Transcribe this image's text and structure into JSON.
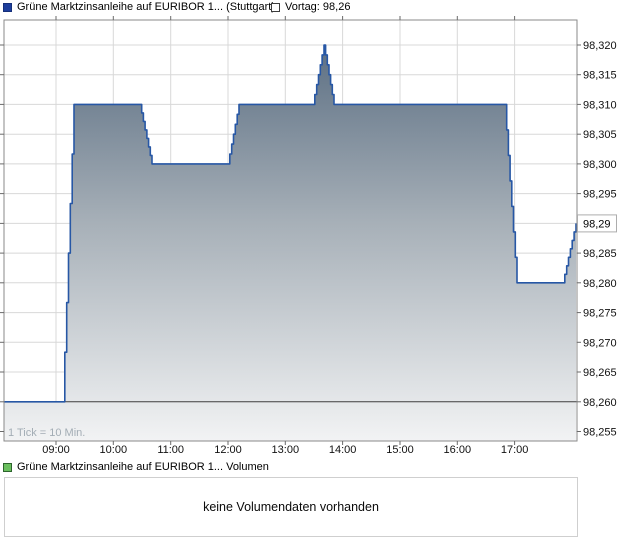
{
  "price_chart": {
    "legend": {
      "series_label": "Grüne Marktzinsanleihe auf EURIBOR 1... (Stuttgart)",
      "prev_close_label": "Vortag: 98,26"
    },
    "tick_note": "1 Tick = 10 Min."
  },
  "volume_chart": {
    "legend_label": "Grüne Marktzinsanleihe auf EURIBOR 1... Volumen",
    "empty_message": "keine Volumendaten vorhanden"
  },
  "colors": {
    "line_blue": "#2757a5",
    "fill_top": "#5c6f83",
    "fill_mid": "#a7b0b8",
    "fill_bottom": "#f2f3f4",
    "grid": "#d8d8d8",
    "frame": "#8a8a8a",
    "tick": "#6a6a6a",
    "prev_close_line": "#3f3f3f",
    "axis_text": "#111111",
    "muted_text": "#a3adb5",
    "badge_border": "#adadad",
    "legend_blue": "#1d3e9c",
    "legend_green": "#6abf5e"
  },
  "chart_data": {
    "type": "area",
    "title": "Grüne Marktzinsanleihe auf EURIBOR 1... (Stuttgart)",
    "prev_close": 98.26,
    "last_price": 98.29,
    "last_price_label": "98,29",
    "tick_interval_minutes": 10,
    "xlim_hours": [
      8.093,
      18.088
    ],
    "ylim": [
      98.2534,
      98.3242
    ],
    "grid": true,
    "legend_position": "top",
    "x_ticks": [
      {
        "hour": 9,
        "label": "09:00"
      },
      {
        "hour": 10,
        "label": "10:00"
      },
      {
        "hour": 11,
        "label": "11:00"
      },
      {
        "hour": 12,
        "label": "12:00"
      },
      {
        "hour": 13,
        "label": "13:00"
      },
      {
        "hour": 14,
        "label": "14:00"
      },
      {
        "hour": 15,
        "label": "15:00"
      },
      {
        "hour": 16,
        "label": "16:00"
      },
      {
        "hour": 17,
        "label": "17:00"
      }
    ],
    "y_ticks": [
      {
        "value": 98.32,
        "label": "98,320"
      },
      {
        "value": 98.315,
        "label": "98,315"
      },
      {
        "value": 98.31,
        "label": "98,310"
      },
      {
        "value": 98.305,
        "label": "98,305"
      },
      {
        "value": 98.3,
        "label": "98,300"
      },
      {
        "value": 98.295,
        "label": "98,295"
      },
      {
        "value": 98.29,
        "label": ""
      },
      {
        "value": 98.285,
        "label": "98,285"
      },
      {
        "value": 98.28,
        "label": "98,280"
      },
      {
        "value": 98.275,
        "label": "98,275"
      },
      {
        "value": 98.27,
        "label": "98,270"
      },
      {
        "value": 98.265,
        "label": "98,265"
      },
      {
        "value": 98.26,
        "label": "98,260"
      },
      {
        "value": 98.255,
        "label": "98,255"
      }
    ],
    "points": [
      {
        "t": 8.093,
        "p": 98.26
      },
      {
        "t": 9.122,
        "p": 98.26
      },
      {
        "t": 9.314,
        "p": 98.31
      },
      {
        "t": 10.465,
        "p": 98.31
      },
      {
        "t": 10.675,
        "p": 98.3
      },
      {
        "t": 12.0,
        "p": 98.3
      },
      {
        "t": 12.192,
        "p": 98.31
      },
      {
        "t": 13.483,
        "p": 98.31
      },
      {
        "t": 13.674,
        "p": 98.32
      },
      {
        "t": 13.849,
        "p": 98.31
      },
      {
        "t": 16.831,
        "p": 98.31
      },
      {
        "t": 17.041,
        "p": 98.28
      },
      {
        "t": 17.843,
        "p": 98.28
      },
      {
        "t": 18.07,
        "p": 98.29
      }
    ]
  }
}
